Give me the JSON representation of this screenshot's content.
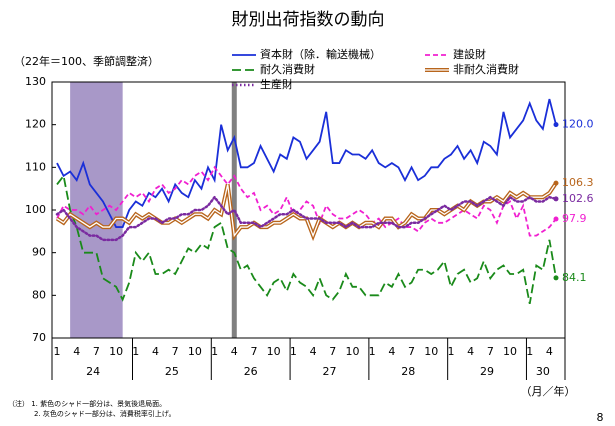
{
  "chart_data": {
    "type": "line",
    "title": "財別出荷指数の動向",
    "subtitle": "（22年＝100、季節調整済）",
    "x_unit_label": "（月／年）",
    "categories": [
      "1",
      null,
      null,
      "4",
      null,
      null,
      "7",
      null,
      null,
      "10",
      null,
      null,
      "1",
      null,
      null,
      "4",
      null,
      null,
      "7",
      null,
      null,
      "10",
      null,
      null,
      "1",
      null,
      null,
      "4",
      null,
      null,
      "7",
      null,
      null,
      "10",
      null,
      null,
      "1",
      null,
      null,
      "4",
      null,
      null,
      "7",
      null,
      null,
      "10",
      null,
      null,
      "1",
      null,
      null,
      "4",
      null,
      null,
      "7",
      null,
      null,
      "10",
      null,
      null,
      "1",
      null,
      null,
      "4",
      null,
      null,
      "7",
      null,
      null,
      "10",
      null,
      null,
      "1",
      null,
      null,
      "4",
      null
    ],
    "x_groups": [
      "24",
      "25",
      "26",
      "27",
      "28",
      "29",
      "30"
    ],
    "ylim": [
      70,
      130
    ],
    "yticks": [
      70,
      80,
      90,
      100,
      110,
      120,
      130
    ],
    "grid": false,
    "shading": [
      {
        "start": 2,
        "end": 10,
        "color": "#a898c8"
      },
      {
        "start": 27,
        "end": 27,
        "color": "#808080"
      }
    ],
    "series": [
      {
        "name": "資本財（除．輸送機械）",
        "color": "#1a2fd8",
        "style": "solid",
        "end_label": "120.0",
        "values": [
          111,
          108,
          109,
          107,
          111,
          106,
          104,
          102,
          99,
          96,
          96,
          100,
          102,
          101,
          104,
          103,
          105,
          102,
          106,
          104,
          103,
          107,
          105,
          110,
          107,
          120,
          114,
          117,
          110,
          110,
          111,
          115,
          112,
          109,
          113,
          112,
          117,
          116,
          112,
          114,
          116,
          123,
          111,
          111,
          114,
          113,
          113,
          112,
          114,
          111,
          110,
          111,
          110,
          107,
          110,
          107,
          108,
          110,
          110,
          112,
          113,
          115,
          112,
          114,
          111,
          116,
          115,
          113,
          123,
          117,
          119,
          121,
          125,
          121,
          119,
          126,
          120
        ]
      },
      {
        "name": "建設財",
        "color": "#f020d0",
        "style": "dashed",
        "end_label": "97.9",
        "values": [
          98,
          101,
          100,
          100,
          99,
          101,
          99,
          100,
          101,
          100,
          102,
          104,
          103,
          104,
          102,
          105,
          106,
          104,
          105,
          107,
          106,
          108,
          109,
          107,
          110,
          108,
          106,
          108,
          105,
          103,
          104,
          100,
          101,
          99,
          100,
          103,
          99,
          100,
          102,
          101,
          97,
          101,
          99,
          98,
          98,
          99,
          100,
          99,
          97,
          98,
          96,
          97,
          98,
          96,
          96,
          95,
          97,
          98,
          97,
          97,
          98,
          99,
          100,
          99,
          98,
          101,
          100,
          97,
          101,
          102,
          98,
          101,
          94,
          94,
          95,
          96,
          97.9
        ]
      },
      {
        "name": "耐久消費財",
        "color": "#1a8a1a",
        "style": "longdash",
        "end_label": "84.1",
        "values": [
          106,
          108,
          100,
          96,
          90,
          90,
          90,
          84,
          83,
          82,
          79,
          83,
          90,
          88,
          90,
          85,
          85,
          86,
          85,
          88,
          91,
          90,
          92,
          91,
          96,
          97,
          91,
          90,
          86,
          87,
          84,
          82,
          80,
          83,
          84,
          81,
          85,
          83,
          82,
          80,
          84,
          80,
          79,
          81,
          85,
          82,
          82,
          80,
          80,
          80,
          83,
          82,
          85,
          82,
          83,
          86,
          86,
          85,
          86,
          88,
          82,
          85,
          86,
          83,
          84,
          88,
          84,
          86,
          87,
          85,
          85,
          86,
          78,
          87,
          86,
          93,
          84.1
        ]
      },
      {
        "name": "非耐久消費財",
        "color": "#b8651c",
        "style": "double",
        "end_label": "106.3",
        "values": [
          98,
          97,
          99,
          98,
          97,
          96,
          97,
          96,
          96,
          98,
          98,
          97,
          99,
          98,
          99,
          98,
          97,
          97,
          98,
          97,
          98,
          99,
          99,
          98,
          100,
          99,
          106,
          94,
          96,
          96,
          97,
          96,
          96,
          97,
          97,
          98,
          99,
          98,
          98,
          94,
          98,
          97,
          96,
          97,
          96,
          97,
          96,
          97,
          97,
          96,
          98,
          98,
          96,
          97,
          99,
          98,
          98,
          100,
          100,
          99,
          100,
          101,
          100,
          102,
          101,
          102,
          102,
          103,
          102,
          104,
          103,
          104,
          103,
          103,
          103,
          104,
          106.3
        ]
      },
      {
        "name": "生産財",
        "color": "#7a2aa0",
        "style": "dotted",
        "end_label": "102.6",
        "values": [
          99,
          100,
          98,
          96,
          95,
          94,
          94,
          93,
          93,
          93,
          94,
          96,
          96,
          97,
          98,
          98,
          97,
          98,
          98,
          99,
          99,
          100,
          100,
          101,
          103,
          101,
          99,
          100,
          97,
          97,
          97,
          96,
          97,
          98,
          99,
          99,
          100,
          99,
          98,
          98,
          98,
          97,
          97,
          97,
          96,
          97,
          96,
          96,
          96,
          97,
          97,
          97,
          96,
          96,
          97,
          97,
          98,
          99,
          100,
          101,
          100,
          101,
          102,
          102,
          101,
          102,
          103,
          102,
          101,
          103,
          102,
          102,
          103,
          102,
          102,
          103,
          102.6
        ]
      }
    ],
    "notes": [
      "（注） 1. 紫色のシャド一部分は、景気後退局面。",
      "2. 灰色のシャド一部分は、消費税率引上げ。"
    ],
    "page_number": "8"
  }
}
